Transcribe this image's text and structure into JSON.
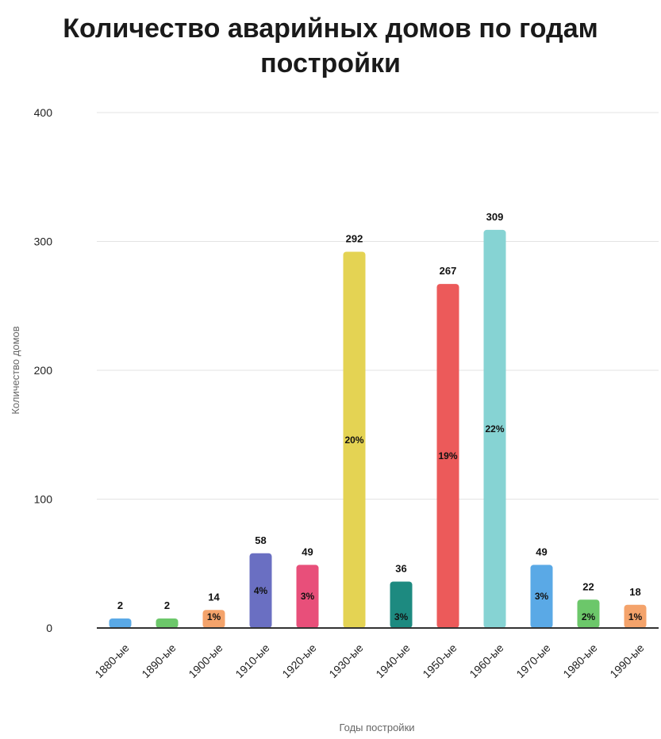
{
  "chart_data": {
    "type": "bar",
    "title": "Количество аварийных домов по годам постройки",
    "xlabel": "Годы постройки",
    "ylabel": "Количество домов",
    "ylim": [
      0,
      400
    ],
    "yticks": [
      "0",
      "100",
      "200",
      "300",
      "400"
    ],
    "grid": true,
    "legend": "none",
    "categories": [
      "1880-ые",
      "1890-ые",
      "1900-ые",
      "1910-ые",
      "1920-ые",
      "1930-ые",
      "1940-ые",
      "1950-ые",
      "1960-ые",
      "1970-ые",
      "1980-ые",
      "1990-ые"
    ],
    "values": [
      2,
      2,
      14,
      58,
      49,
      292,
      36,
      267,
      309,
      49,
      22,
      18
    ],
    "value_labels": [
      "2",
      "2",
      "14",
      "58",
      "49",
      "292",
      "36",
      "267",
      "309",
      "49",
      "22",
      "18"
    ],
    "percent_labels": [
      "",
      "",
      "1%",
      "4%",
      "3%",
      "20%",
      "3%",
      "19%",
      "22%",
      "3%",
      "2%",
      "1%"
    ],
    "colors": [
      "#5aa9e6",
      "#6cc76a",
      "#f4a36b",
      "#6a6fc2",
      "#e84f7a",
      "#e4d353",
      "#1d8a80",
      "#ec5a5a",
      "#86d3d3",
      "#5aa9e6",
      "#6cc76a",
      "#f4a36b"
    ]
  }
}
